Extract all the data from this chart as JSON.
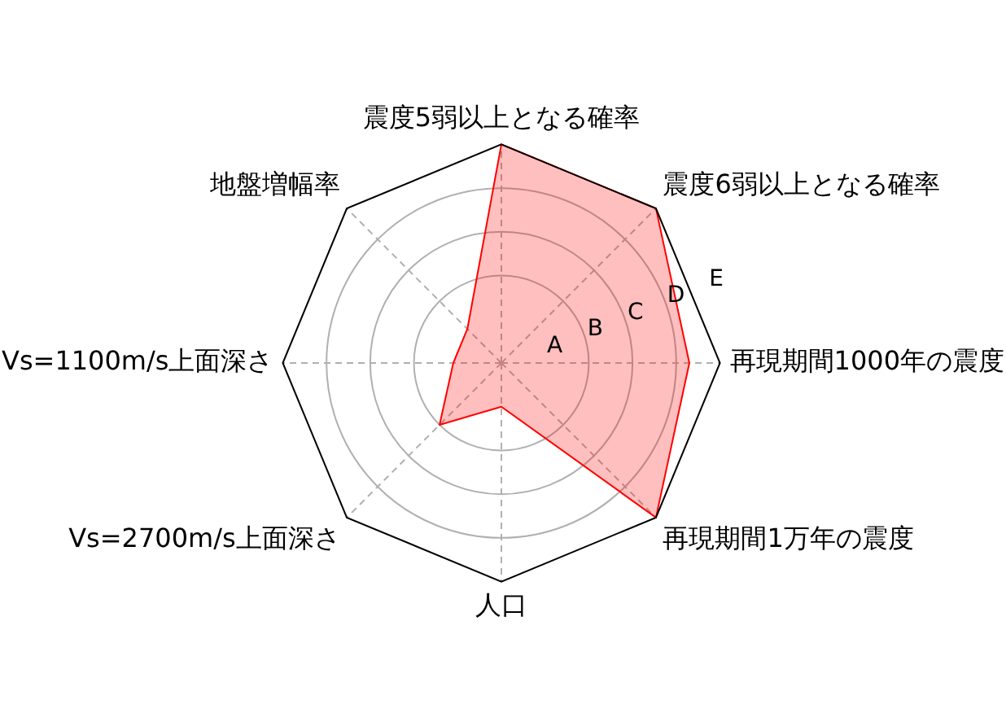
{
  "chart_data": {
    "type": "radar",
    "categories": [
      "震度5弱以上となる確率",
      "震度6弱以上となる確率",
      "再現期間1000年の震度",
      "再現期間1万年の震度",
      "人口",
      "Vs=2700m/s上面深さ",
      "Vs=1100m/s上面深さ",
      "地盤増幅率"
    ],
    "series": [
      {
        "color": "#ff0000",
        "values": [
          5,
          5,
          4.3,
          5,
          1.0,
          2.0,
          1.1,
          1.1
        ]
      }
    ],
    "ylim": [
      0,
      5
    ],
    "yticks": [
      {
        "value": 1,
        "label": "A"
      },
      {
        "value": 2,
        "label": "B"
      },
      {
        "value": 3,
        "label": "C"
      },
      {
        "value": 4,
        "label": "D"
      },
      {
        "value": 5,
        "label": "E"
      }
    ],
    "grid": true,
    "marker": "none"
  }
}
